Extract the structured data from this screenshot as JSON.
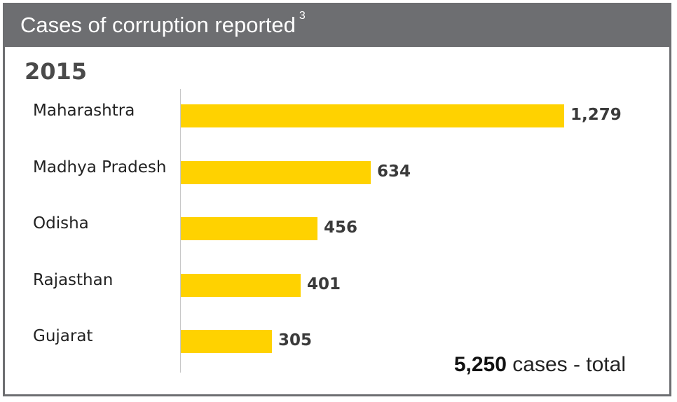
{
  "chart_data": {
    "type": "bar",
    "orientation": "horizontal",
    "title": "Cases of corruption reported",
    "title_footnote": "3",
    "subtitle": "2015",
    "categories": [
      "Maharashtra",
      "Madhya Pradesh",
      "Odisha",
      "Rajasthan",
      "Gujarat"
    ],
    "values": [
      1279,
      634,
      456,
      401,
      305
    ],
    "value_labels": [
      "1,279",
      "634",
      "456",
      "401",
      "305"
    ],
    "total_value": "5,250",
    "total_text": " cases - total",
    "bar_color": "#ffd200",
    "header_color": "#6d6e71",
    "xlim": [
      0,
      1279
    ],
    "grid": false,
    "legend": "none"
  }
}
